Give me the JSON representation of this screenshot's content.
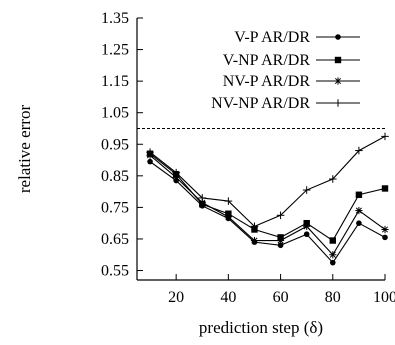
{
  "chart_data": {
    "type": "line",
    "title": "",
    "xlabel": "prediction step (δ)",
    "ylabel": "relative error",
    "xlim": [
      5,
      100
    ],
    "ylim": [
      0.52,
      1.35
    ],
    "xticks": [
      20,
      40,
      60,
      80,
      100
    ],
    "xtick_labels": [
      "20",
      "40",
      "60",
      "80",
      "100"
    ],
    "yticks": [
      0.55,
      0.65,
      0.75,
      0.85,
      0.95,
      1.05,
      1.15,
      1.25,
      1.35
    ],
    "ytick_labels": [
      "0.55",
      "0.65",
      "0.75",
      "0.85",
      "0.95",
      "1.05",
      "1.15",
      "1.25",
      "1.35"
    ],
    "grid": false,
    "legend_position": "top-right",
    "reference_line": {
      "y": 1.0,
      "style": "dashed"
    },
    "x": [
      10,
      20,
      30,
      40,
      50,
      60,
      70,
      80,
      90,
      100
    ],
    "series": [
      {
        "name": "V-P AR/DR",
        "marker": "circle",
        "values": [
          0.895,
          0.835,
          0.755,
          0.715,
          0.64,
          0.63,
          0.665,
          0.575,
          0.7,
          0.655
        ]
      },
      {
        "name": "V-NP AR/DR",
        "marker": "square",
        "values": [
          0.92,
          0.855,
          0.76,
          0.73,
          0.68,
          0.655,
          0.7,
          0.645,
          0.79,
          0.81
        ]
      },
      {
        "name": "NV-P AR/DR",
        "marker": "asterisk",
        "values": [
          0.915,
          0.845,
          0.765,
          0.72,
          0.645,
          0.645,
          0.69,
          0.6,
          0.74,
          0.68
        ]
      },
      {
        "name": "NV-NP AR/DR",
        "marker": "plus",
        "values": [
          0.925,
          0.86,
          0.78,
          0.77,
          0.69,
          0.725,
          0.805,
          0.84,
          0.93,
          0.975
        ]
      }
    ]
  }
}
